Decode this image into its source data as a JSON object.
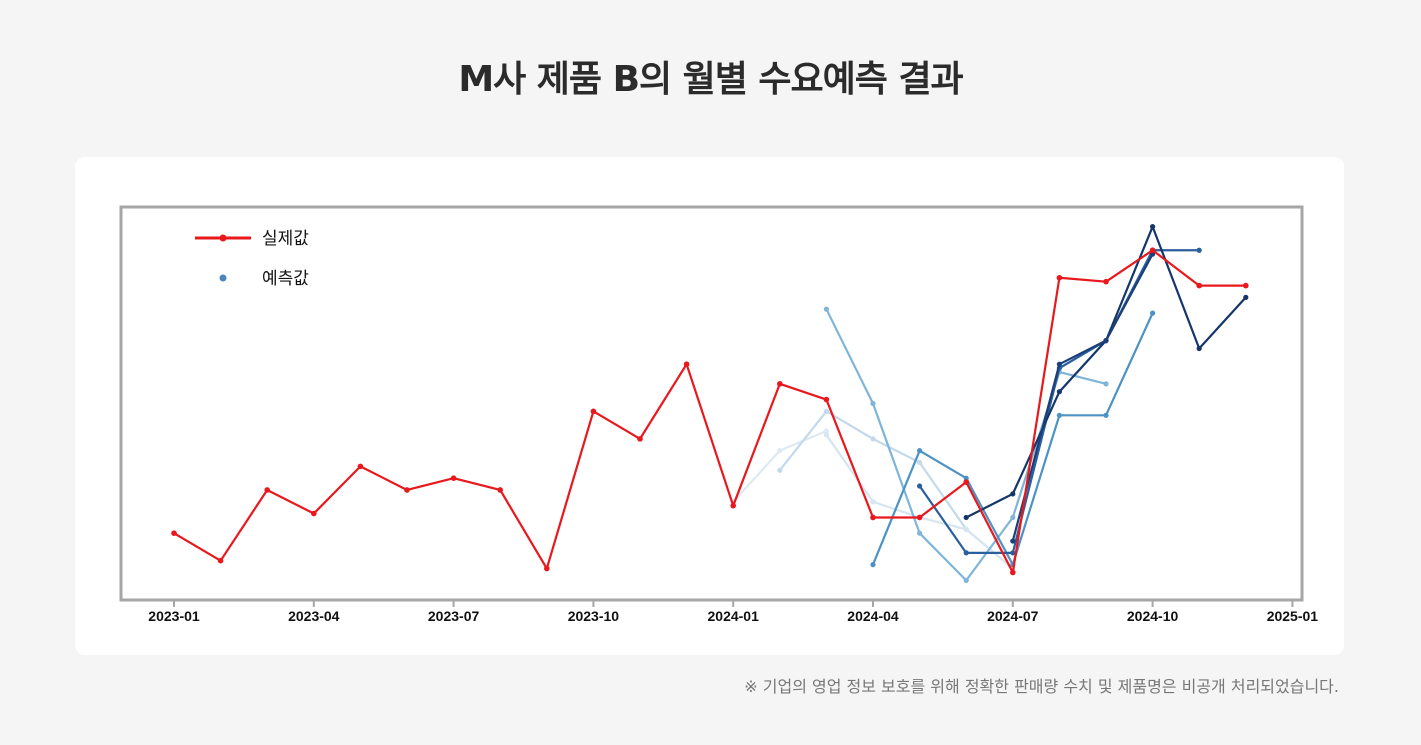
{
  "page": {
    "title": "M사 제품 B의 월별 수요예측 결과",
    "footnote": "※ 기업의 영업 정보 보호를 위해 정확한 판매량 수치 및 제품명은 비공개 처리되었습니다."
  },
  "chart_data": {
    "type": "line",
    "title": "M사 제품 B의 월별 수요예측 결과",
    "xlabel": "",
    "ylabel": "",
    "x_ticks": [
      "2023-01",
      "2023-04",
      "2023-07",
      "2023-10",
      "2024-01",
      "2024-04",
      "2024-07",
      "2024-10",
      "2025-01"
    ],
    "xlim": [
      "2022-12",
      "2025-01"
    ],
    "ylim": [
      0,
      100
    ],
    "y_tick_labels_hidden": true,
    "grid": false,
    "legend": {
      "placement": "top-left",
      "entries": [
        {
          "label": "실제값",
          "color": "#e8181c"
        },
        {
          "label": "예측값",
          "color_from": "#9ec8e4",
          "color_to": "#2e68a6"
        }
      ]
    },
    "actual": {
      "name": "실제값",
      "color": "#e8181c",
      "x": [
        "2023-01",
        "2023-02",
        "2023-03",
        "2023-04",
        "2023-05",
        "2023-06",
        "2023-07",
        "2023-08",
        "2023-09",
        "2023-10",
        "2023-11",
        "2023-12",
        "2024-01",
        "2024-02",
        "2024-03",
        "2024-04",
        "2024-05",
        "2024-06",
        "2024-07",
        "2024-08",
        "2024-09",
        "2024-10",
        "2024-11",
        "2024-12"
      ],
      "y": [
        17,
        10,
        28,
        22,
        34,
        28,
        31,
        28,
        8,
        48,
        41,
        60,
        24,
        55,
        51,
        21,
        21,
        30,
        7,
        82,
        81,
        89,
        80,
        80
      ]
    },
    "forecasts": [
      {
        "color": "#dde9f4",
        "x": [
          "2024-01",
          "2024-02",
          "2024-03"
        ],
        "y": [
          25,
          38,
          43
        ]
      },
      {
        "color": "#c3d9ec",
        "x": [
          "2024-02",
          "2024-03",
          "2024-04",
          "2024-05",
          "2024-06",
          "2024-07"
        ],
        "y": [
          33,
          48,
          41,
          35,
          18,
          8
        ]
      },
      {
        "color": "#d6e5f2",
        "x": [
          "2024-03",
          "2024-04",
          "2024-05",
          "2024-06",
          "2024-07"
        ],
        "y": [
          42,
          25,
          21,
          18,
          8
        ]
      },
      {
        "color": "#7eb5d8",
        "x": [
          "2024-03",
          "2024-04",
          "2024-05",
          "2024-06",
          "2024-07",
          "2024-08",
          "2024-09"
        ],
        "y": [
          74,
          50,
          17,
          5,
          21,
          58,
          55
        ]
      },
      {
        "color": "#4d92c4",
        "x": [
          "2024-04",
          "2024-05",
          "2024-06",
          "2024-07",
          "2024-08",
          "2024-09",
          "2024-10"
        ],
        "y": [
          9,
          38,
          31,
          9,
          47,
          47,
          73
        ]
      },
      {
        "color": "#2a5f9e",
        "x": [
          "2024-05",
          "2024-06",
          "2024-07",
          "2024-08",
          "2024-09",
          "2024-10",
          "2024-11"
        ],
        "y": [
          29,
          12,
          12,
          59,
          66,
          89,
          89
        ]
      },
      {
        "color": "#14366b",
        "x": [
          "2024-06",
          "2024-07",
          "2024-08",
          "2024-09",
          "2024-10",
          "2024-11",
          "2024-12"
        ],
        "y": [
          21,
          27,
          53,
          66,
          95,
          64,
          77
        ]
      },
      {
        "color": "#1d3f77",
        "x": [
          "2024-07",
          "2024-08",
          "2024-09",
          "2024-10"
        ],
        "y": [
          15,
          60,
          66,
          88
        ]
      }
    ]
  }
}
